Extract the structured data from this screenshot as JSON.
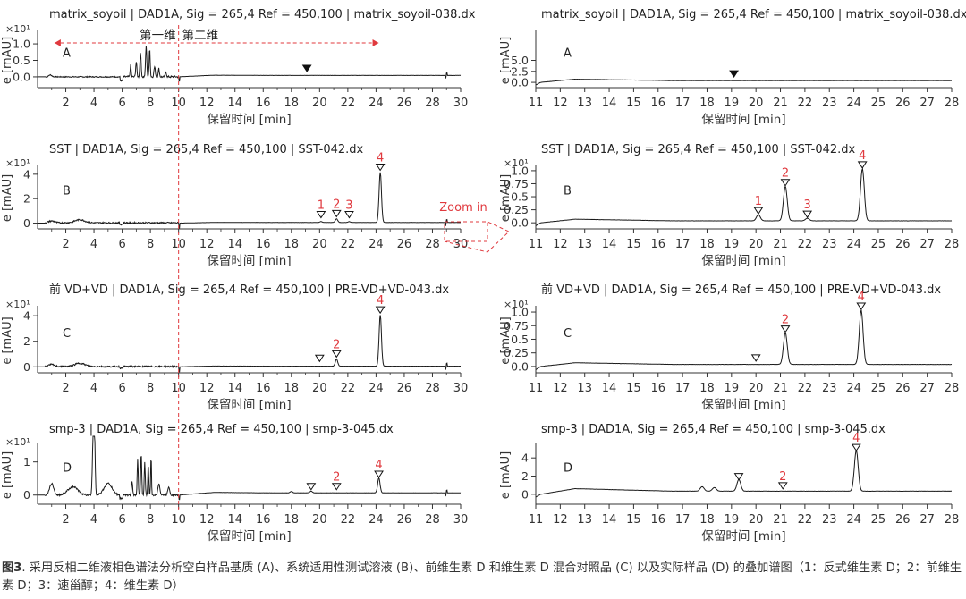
{
  "figure": {
    "dim1_label": "第一维",
    "dim2_label": "第二维",
    "zoom_label": "Zoom in"
  },
  "caption": {
    "fig_no": "图3",
    "text": ". 采用反相二维液相色谱法分析空白样品基质 (A)、系统适用性测试溶液 (B)、前维生素 D 和维生素 D 混合对照品 (C) 以及实际样品 (D) 的叠加谱图（1：反式维生素 D；2：前维生素 D；3：速甾醇；4：维生素 D）"
  },
  "chart_data": [
    {
      "type": "line",
      "panel": "A",
      "title": "matrix_soyoil | DAD1A, Sig = 265,4 Ref = 450,100 | matrix_soyoil-038.dx",
      "xlabel": "保留时间 [min]",
      "ylabel": "e [mAU]",
      "yexp": "×10¹",
      "xlim": [
        0,
        30
      ],
      "xticks": [
        2,
        4,
        6,
        8,
        10,
        12,
        14,
        16,
        18,
        20,
        22,
        24,
        26,
        28,
        30
      ],
      "ylim": [
        -0.3,
        1.3
      ],
      "yticks": [
        0.0,
        0.5,
        1.0
      ],
      "ytick_labels": [
        "0.0",
        "0.5",
        "1.0"
      ],
      "peaks": [],
      "markers": [
        {
          "x": 19.1,
          "label": "",
          "filled": true
        }
      ]
    },
    {
      "type": "line",
      "panel": "A",
      "title": "matrix_soyoil | DAD1A, Sig = 265,4 Ref = 450,100 | matrix_soyoil-038.dx",
      "xlabel": "保留时间 [min]",
      "ylabel": "e [mAU]",
      "yexp": "",
      "xlim": [
        11,
        28
      ],
      "xticks": [
        11,
        12,
        13,
        14,
        15,
        16,
        17,
        18,
        19,
        20,
        21,
        22,
        23,
        24,
        25,
        26,
        27,
        28
      ],
      "ylim": [
        -1.0,
        11.0
      ],
      "yticks": [
        0.0,
        2.5,
        5.0
      ],
      "ytick_labels": [
        "0.0",
        "2.5",
        "5.0"
      ],
      "peaks": [],
      "markers": [
        {
          "x": 19.1,
          "label": "",
          "filled": true
        }
      ]
    },
    {
      "type": "line",
      "panel": "B",
      "title": "SST | DAD1A, Sig = 265,4 Ref = 450,100 | SST-042.dx",
      "xlabel": "保留时间 [min]",
      "ylabel": "e [mAU]",
      "yexp": "×10¹",
      "xlim": [
        0,
        30
      ],
      "xticks": [
        2,
        4,
        6,
        8,
        10,
        12,
        14,
        16,
        18,
        20,
        22,
        24,
        26,
        28,
        30
      ],
      "ylim": [
        -0.4,
        4.5
      ],
      "yticks": [
        0,
        2,
        4
      ],
      "ytick_labels": [
        "0",
        "2",
        "4"
      ],
      "peaks": [
        {
          "x": 20.1,
          "h": 0.08
        },
        {
          "x": 21.2,
          "h": 0.3
        },
        {
          "x": 22.1,
          "h": 0.07
        },
        {
          "x": 24.3,
          "h": 4.1
        }
      ],
      "markers": [
        {
          "x": 20.1,
          "label": "1"
        },
        {
          "x": 21.2,
          "label": "2"
        },
        {
          "x": 22.1,
          "label": "3"
        },
        {
          "x": 24.3,
          "label": "4"
        }
      ]
    },
    {
      "type": "line",
      "panel": "B",
      "title": "SST | DAD1A, Sig = 265,4 Ref = 450,100 | SST-042.dx",
      "xlabel": "保留时间 [min]",
      "ylabel": "e [mAU]",
      "yexp": "×10¹",
      "xlim": [
        11,
        28
      ],
      "xticks": [
        11,
        12,
        13,
        14,
        15,
        16,
        17,
        18,
        19,
        20,
        21,
        22,
        23,
        24,
        25,
        26,
        27,
        28
      ],
      "ylim": [
        -0.1,
        1.05
      ],
      "yticks": [
        0.0,
        0.25,
        0.5,
        0.75,
        1.0
      ],
      "ytick_labels": [
        "0.0",
        "0.25",
        "0.5",
        "0.75",
        "1.0"
      ],
      "peaks": [
        {
          "x": 20.1,
          "h": 0.12
        },
        {
          "x": 21.2,
          "h": 0.66
        },
        {
          "x": 22.1,
          "h": 0.05
        },
        {
          "x": 24.35,
          "h": 1.0
        }
      ],
      "markers": [
        {
          "x": 20.1,
          "label": "1"
        },
        {
          "x": 21.2,
          "label": "2"
        },
        {
          "x": 22.1,
          "label": "3"
        },
        {
          "x": 24.35,
          "label": "4"
        }
      ]
    },
    {
      "type": "line",
      "panel": "C",
      "title": "前 VD+VD | DAD1A, Sig = 265,4 Ref = 450,100 | PRE-VD+VD-043.dx",
      "xlabel": "保留时间 [min]",
      "ylabel": "e [mAU]",
      "yexp": "×10¹",
      "xlim": [
        0,
        30
      ],
      "xticks": [
        2,
        4,
        6,
        8,
        10,
        12,
        14,
        16,
        18,
        20,
        22,
        24,
        26,
        28,
        30
      ],
      "ylim": [
        -0.4,
        4.5
      ],
      "yticks": [
        0,
        2,
        4
      ],
      "ytick_labels": [
        "0",
        "2",
        "4"
      ],
      "peaks": [
        {
          "x": 21.2,
          "h": 0.55
        },
        {
          "x": 24.3,
          "h": 4.0
        }
      ],
      "markers": [
        {
          "x": 20.0,
          "label": ""
        },
        {
          "x": 21.2,
          "label": "2"
        },
        {
          "x": 24.3,
          "label": "4"
        }
      ]
    },
    {
      "type": "line",
      "panel": "C",
      "title": "前 VD+VD | DAD1A, Sig = 265,4 Ref = 450,100 | PRE-VD+VD-043.dx",
      "xlabel": "保留时间 [min]",
      "ylabel": "e [mAU]",
      "yexp": "×10¹",
      "xlim": [
        11,
        28
      ],
      "xticks": [
        11,
        12,
        13,
        14,
        15,
        16,
        17,
        18,
        19,
        20,
        21,
        22,
        23,
        24,
        25,
        26,
        27,
        28
      ],
      "ylim": [
        -0.1,
        1.05
      ],
      "yticks": [
        0.0,
        0.25,
        0.5,
        0.75,
        1.0
      ],
      "ytick_labels": [
        "0.0",
        "0.25",
        "0.5",
        "0.75",
        "1.0"
      ],
      "peaks": [
        {
          "x": 21.2,
          "h": 0.58
        },
        {
          "x": 24.3,
          "h": 1.0
        }
      ],
      "markers": [
        {
          "x": 20.0,
          "label": ""
        },
        {
          "x": 21.2,
          "label": "2"
        },
        {
          "x": 24.3,
          "label": "4"
        }
      ]
    },
    {
      "type": "line",
      "panel": "D",
      "title": "smp-3 | DAD1A, Sig = 265,4 Ref = 450,100 | smp-3-045.dx",
      "xlabel": "保留时间 [min]",
      "ylabel": "e [mAU]",
      "yexp": "×10¹",
      "xlim": [
        0,
        30
      ],
      "xticks": [
        2,
        4,
        6,
        8,
        10,
        12,
        14,
        16,
        18,
        20,
        22,
        24,
        26,
        28,
        30
      ],
      "ylim": [
        -0.25,
        1.45
      ],
      "yticks": [
        0,
        1
      ],
      "ytick_labels": [
        "0",
        "1"
      ],
      "peaks": [
        {
          "x": 18.0,
          "h": 0.04
        },
        {
          "x": 19.4,
          "h": 0.05
        },
        {
          "x": 24.2,
          "h": 0.45
        }
      ],
      "markers": [
        {
          "x": 19.4,
          "label": ""
        },
        {
          "x": 21.2,
          "label": "2"
        },
        {
          "x": 24.2,
          "label": "4"
        }
      ]
    },
    {
      "type": "line",
      "panel": "D",
      "title": "smp-3 | DAD1A, Sig = 265,4 Ref = 450,100 | smp-3-045.dx",
      "xlabel": "保留时间 [min]",
      "ylabel": "e [mAU]",
      "yexp": "",
      "xlim": [
        11,
        28
      ],
      "xticks": [
        11,
        12,
        13,
        14,
        15,
        16,
        17,
        18,
        19,
        20,
        21,
        22,
        23,
        24,
        25,
        26,
        27,
        28
      ],
      "ylim": [
        -1.0,
        5.2
      ],
      "yticks": [
        0,
        2,
        4
      ],
      "ytick_labels": [
        "0",
        "2",
        "4"
      ],
      "peaks": [
        {
          "x": 17.8,
          "h": 0.5
        },
        {
          "x": 18.3,
          "h": 0.4
        },
        {
          "x": 19.3,
          "h": 1.3
        },
        {
          "x": 24.1,
          "h": 4.5
        }
      ],
      "markers": [
        {
          "x": 19.3,
          "label": ""
        },
        {
          "x": 21.1,
          "label": "2"
        },
        {
          "x": 24.1,
          "label": "4"
        }
      ]
    }
  ],
  "colors": {
    "trace": "#1a1a1a",
    "axis": "#333333",
    "label_red": "#e0393e",
    "dashed_red": "#e0393e"
  }
}
